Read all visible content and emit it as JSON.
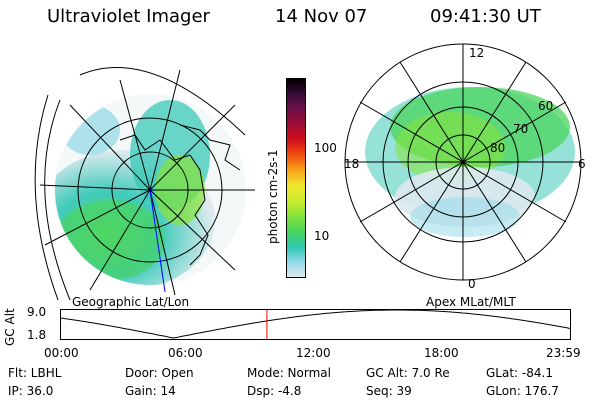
{
  "header": {
    "instrument": "Ultraviolet Imager",
    "date": "14 Nov 07",
    "time": "09:41:30 UT"
  },
  "colorbar": {
    "unit_label": "photon cm-2s-1",
    "tick_labels": [
      "100",
      "10"
    ],
    "stops": [
      "#000000",
      "#3a0c3a",
      "#6b0f4a",
      "#a00c34",
      "#d3101c",
      "#f04a10",
      "#f7a21a",
      "#f2e830",
      "#c6ec2e",
      "#86e33b",
      "#49d45a",
      "#2dc6b4",
      "#8fd8e8",
      "#dde9ee"
    ]
  },
  "left_panel": {
    "label": "Geographic Lat/Lon"
  },
  "right_panel": {
    "label": "Apex MLat/MLT",
    "mlt_labels": {
      "top": "12",
      "left": "18",
      "right": "6",
      "bottom": "0"
    },
    "lat_labels": [
      "60",
      "70",
      "80"
    ]
  },
  "timeline": {
    "ylabel": "GC Alt",
    "y_ticks": [
      "9.0",
      "1.8"
    ],
    "x_ticks": [
      "00:00",
      "06:00",
      "12:00",
      "18:00",
      "23:59"
    ],
    "ylim": [
      1.8,
      9.0
    ],
    "current_time_hours": 9.69,
    "curve_color": "#000000",
    "marker_color": "#ff0000"
  },
  "footer": {
    "row1": {
      "flt": "Flt: LBHL",
      "door": "Door: Open",
      "mode": "Mode: Normal",
      "gcalt": "GC Alt: 7.0 Re",
      "glat": "GLat: -84.1"
    },
    "row2": {
      "ip": "IP: 36.0",
      "gain": "Gain: 14",
      "dsp": "Dsp:    -4.8",
      "seq": "Seq: 39",
      "glon": "GLon: 176.7"
    }
  }
}
